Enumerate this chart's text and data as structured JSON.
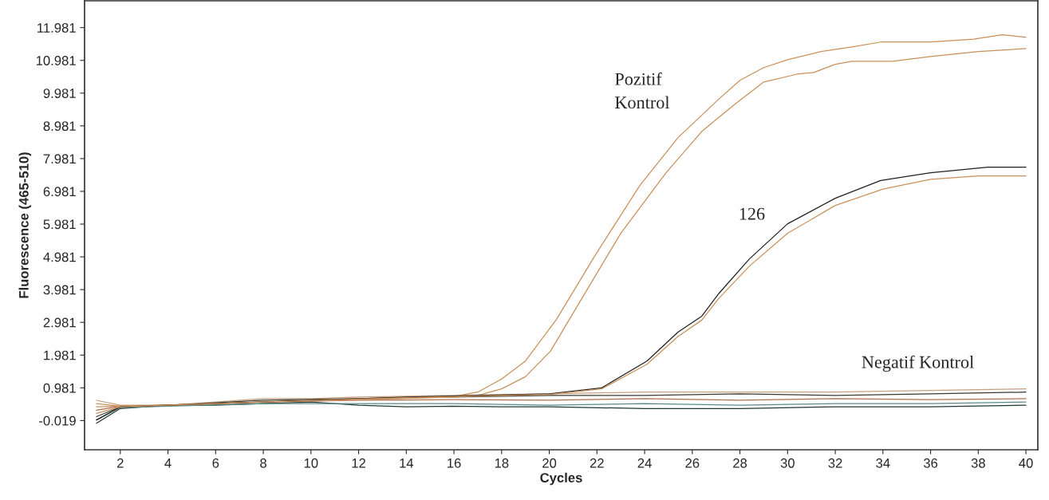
{
  "chart_data": {
    "type": "line",
    "xlabel": "Cycles",
    "ylabel": "Fluorescence (465-510)",
    "xlim": [
      0.5,
      40.5
    ],
    "ylim": [
      -0.91,
      12.8
    ],
    "xticks": [
      2,
      4,
      6,
      8,
      10,
      12,
      14,
      16,
      18,
      20,
      22,
      24,
      26,
      28,
      30,
      32,
      34,
      36,
      38,
      40
    ],
    "yticks": [
      -0.019,
      0.981,
      1.981,
      2.981,
      3.981,
      4.981,
      5.981,
      6.981,
      7.981,
      8.981,
      9.981,
      10.981,
      11.981
    ],
    "grid": false,
    "legend": false,
    "marker": "none",
    "line_style": "solid",
    "series": [
      {
        "color": "#1f3a30",
        "x": [
          1,
          2,
          4,
          6,
          8,
          10,
          12,
          14,
          16,
          18,
          20,
          24,
          28,
          32,
          36,
          40
        ],
        "values": [
          -0.1,
          0.35,
          0.45,
          0.45,
          0.5,
          0.55,
          0.45,
          0.4,
          0.42,
          0.4,
          0.4,
          0.35,
          0.35,
          0.4,
          0.4,
          0.45
        ]
      },
      {
        "color": "#c8a080",
        "x": [
          1,
          2,
          4,
          6,
          8,
          10,
          12,
          16,
          20,
          24,
          28,
          32,
          36,
          40
        ],
        "values": [
          0.6,
          0.45,
          0.45,
          0.55,
          0.65,
          0.65,
          0.7,
          0.75,
          0.8,
          0.85,
          0.85,
          0.85,
          0.9,
          0.95
        ]
      },
      {
        "color": "#3a3a30",
        "x": [
          1,
          2,
          4,
          8,
          12,
          16,
          20,
          24,
          28,
          32,
          36,
          40
        ],
        "values": [
          0.1,
          0.4,
          0.45,
          0.6,
          0.65,
          0.7,
          0.75,
          0.75,
          0.8,
          0.75,
          0.8,
          0.85
        ]
      },
      {
        "color": "#b07050",
        "x": [
          1,
          2,
          4,
          8,
          12,
          16,
          20,
          24,
          28,
          32,
          36,
          40
        ],
        "values": [
          0.3,
          0.42,
          0.45,
          0.55,
          0.6,
          0.62,
          0.6,
          0.65,
          0.6,
          0.65,
          0.62,
          0.65
        ]
      },
      {
        "color": "#5a8a8a",
        "x": [
          1,
          2,
          4,
          8,
          12,
          16,
          20,
          24,
          28,
          32,
          36,
          40
        ],
        "values": [
          0.0,
          0.38,
          0.42,
          0.5,
          0.5,
          0.5,
          0.45,
          0.5,
          0.45,
          0.5,
          0.5,
          0.55
        ]
      },
      {
        "color": "#c8905a",
        "x": [
          1,
          2,
          4,
          8,
          12,
          16,
          17,
          18,
          19,
          20.3,
          21.9,
          23.8,
          25.4,
          27.1,
          28.0,
          29.0,
          30.0,
          31.4,
          32.7,
          33.9,
          36.0,
          37.8,
          39.0,
          40
        ],
        "values": [
          0.5,
          0.42,
          0.45,
          0.55,
          0.65,
          0.72,
          0.85,
          1.25,
          1.8,
          3.07,
          5.0,
          7.16,
          8.62,
          9.79,
          10.37,
          10.76,
          11.0,
          11.25,
          11.39,
          11.54,
          11.54,
          11.63,
          11.76,
          11.69
        ]
      },
      {
        "color": "#c8905a",
        "x": [
          1,
          2,
          4,
          8,
          12,
          16,
          17,
          18,
          19,
          20.05,
          21.4,
          23.0,
          24.9,
          26.4,
          27.7,
          29.0,
          30.4,
          31.1,
          32.0,
          32.7,
          34.4,
          36.0,
          38.0,
          40
        ],
        "values": [
          0.4,
          0.42,
          0.45,
          0.55,
          0.62,
          0.7,
          0.75,
          0.95,
          1.32,
          2.1,
          3.75,
          5.7,
          7.55,
          8.81,
          9.59,
          10.32,
          10.56,
          10.61,
          10.86,
          10.95,
          10.95,
          11.1,
          11.25,
          11.34
        ]
      },
      {
        "color": "#202020",
        "x": [
          1,
          2,
          4,
          8,
          14,
          20,
          22.2,
          24.1,
          25.4,
          26.4,
          27.1,
          28.4,
          30.0,
          32.0,
          33.9,
          36.0,
          38.4,
          40
        ],
        "values": [
          0.0,
          0.4,
          0.45,
          0.55,
          0.7,
          0.8,
          0.98,
          1.8,
          2.68,
          3.17,
          3.85,
          4.92,
          5.99,
          6.77,
          7.31,
          7.55,
          7.72,
          7.72
        ]
      },
      {
        "color": "#c8905a",
        "x": [
          1,
          2,
          4,
          8,
          14,
          20,
          22.2,
          24.1,
          25.4,
          26.4,
          27.1,
          28.4,
          30.0,
          32.0,
          34.0,
          36.0,
          38.0,
          40
        ],
        "values": [
          0.2,
          0.4,
          0.45,
          0.55,
          0.68,
          0.78,
          0.95,
          1.7,
          2.55,
          3.05,
          3.7,
          4.7,
          5.7,
          6.55,
          7.05,
          7.35,
          7.45,
          7.45
        ]
      }
    ],
    "annotations": [
      "Pozitif\nKontrol",
      "126",
      "Negatif Kontrol"
    ]
  }
}
